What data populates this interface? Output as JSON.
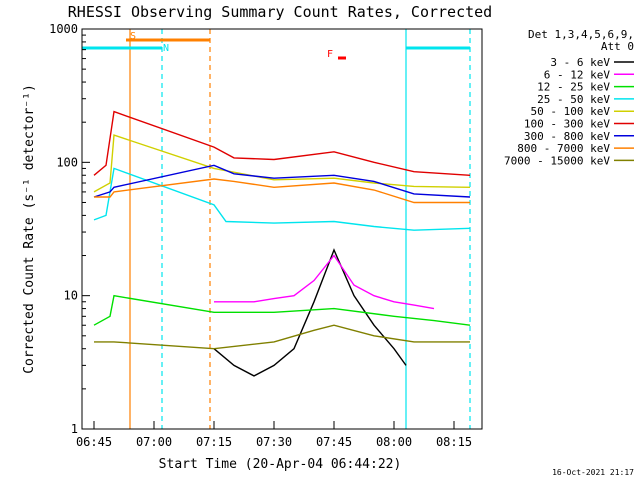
{
  "chart_data": {
    "type": "line",
    "title": "RHESSI Observing Summary Count Rates, Corrected",
    "xlabel": "Start Time (20-Apr-04 06:44:22)",
    "ylabel": "Corrected Count Rate (s⁻¹ detector⁻¹)",
    "yscale": "log",
    "ylim": [
      1,
      1000
    ],
    "xlim": [
      "06:42",
      "08:22"
    ],
    "x_ticks": [
      "06:45",
      "07:00",
      "07:15",
      "07:30",
      "07:45",
      "08:00",
      "08:15"
    ],
    "y_ticks": [
      "1",
      "10",
      "100",
      "1000"
    ],
    "grid": false,
    "legend_position": "top-right",
    "legend_header": [
      "Det 1,3,4,5,6,9,",
      "Att 0"
    ],
    "footer_date": "16-Oct-2021 21:17",
    "markers": {
      "vertical_lines": [
        {
          "x": "06:54",
          "color": "#ff8000",
          "style": "solid"
        },
        {
          "x": "07:02",
          "color": "#00e5ee",
          "style": "dashed"
        },
        {
          "x": "07:14",
          "color": "#ff8000",
          "style": "dashed"
        },
        {
          "x": "08:03",
          "color": "#00e5ee",
          "style": "solid"
        },
        {
          "x": "08:19",
          "color": "#00e5ee",
          "style": "dashed"
        }
      ],
      "flags": [
        {
          "label": "S",
          "color": "#ff8000",
          "start": "06:53",
          "end": "07:14"
        },
        {
          "label": "N",
          "color": "#00e5ee",
          "start": "06:42",
          "end": "07:02"
        },
        {
          "label": "N",
          "color": "#00e5ee",
          "start": "08:03",
          "end": "08:19"
        },
        {
          "label": "F",
          "color": "#ff0000",
          "start": "07:46",
          "end": "07:48"
        }
      ]
    },
    "series": [
      {
        "name": "3 - 6 keV",
        "color": "#000000",
        "points": [
          [
            "07:15",
            4
          ],
          [
            "07:20",
            3
          ],
          [
            "07:25",
            2.5
          ],
          [
            "07:30",
            3
          ],
          [
            "07:35",
            4
          ],
          [
            "07:40",
            9
          ],
          [
            "07:45",
            22
          ],
          [
            "07:50",
            10
          ],
          [
            "07:55",
            6
          ],
          [
            "08:00",
            4
          ],
          [
            "08:03",
            3
          ]
        ]
      },
      {
        "name": "6 - 12 keV",
        "color": "#ff00ff",
        "points": [
          [
            "07:15",
            9
          ],
          [
            "07:20",
            9
          ],
          [
            "07:25",
            9
          ],
          [
            "07:30",
            9.5
          ],
          [
            "07:35",
            10
          ],
          [
            "07:40",
            13
          ],
          [
            "07:45",
            20
          ],
          [
            "07:50",
            12
          ],
          [
            "07:55",
            10
          ],
          [
            "08:00",
            9
          ],
          [
            "08:05",
            8.5
          ],
          [
            "08:10",
            8
          ]
        ]
      },
      {
        "name": "12 - 25 keV",
        "color": "#00e000",
        "points": [
          [
            "06:45",
            6
          ],
          [
            "06:49",
            7
          ],
          [
            "06:50",
            10
          ],
          [
            "07:15",
            7.5
          ],
          [
            "07:30",
            7.5
          ],
          [
            "07:45",
            8
          ],
          [
            "08:00",
            7
          ],
          [
            "08:10",
            6.5
          ],
          [
            "08:19",
            6
          ]
        ]
      },
      {
        "name": "25 - 50 keV",
        "color": "#00e5ee",
        "points": [
          [
            "06:45",
            37
          ],
          [
            "06:48",
            40
          ],
          [
            "06:50",
            90
          ],
          [
            "07:15",
            48
          ],
          [
            "07:18",
            36
          ],
          [
            "07:30",
            35
          ],
          [
            "07:45",
            36
          ],
          [
            "07:55",
            33
          ],
          [
            "08:05",
            31
          ],
          [
            "08:19",
            32
          ]
        ]
      },
      {
        "name": "50 - 100 keV",
        "color": "#d0d000",
        "points": [
          [
            "06:45",
            60
          ],
          [
            "06:49",
            70
          ],
          [
            "06:50",
            160
          ],
          [
            "07:15",
            90
          ],
          [
            "07:30",
            74
          ],
          [
            "07:45",
            76
          ],
          [
            "07:55",
            70
          ],
          [
            "08:05",
            66
          ],
          [
            "08:19",
            65
          ]
        ]
      },
      {
        "name": "100 - 300 keV",
        "color": "#e00000",
        "points": [
          [
            "06:45",
            80
          ],
          [
            "06:48",
            95
          ],
          [
            "06:50",
            240
          ],
          [
            "07:15",
            130
          ],
          [
            "07:20",
            108
          ],
          [
            "07:30",
            105
          ],
          [
            "07:45",
            120
          ],
          [
            "07:55",
            100
          ],
          [
            "08:05",
            85
          ],
          [
            "08:19",
            80
          ]
        ]
      },
      {
        "name": "300 - 800 keV",
        "color": "#0000dd",
        "points": [
          [
            "06:45",
            55
          ],
          [
            "06:49",
            60
          ],
          [
            "06:50",
            65
          ],
          [
            "07:15",
            95
          ],
          [
            "07:20",
            82
          ],
          [
            "07:30",
            76
          ],
          [
            "07:45",
            80
          ],
          [
            "07:55",
            72
          ],
          [
            "08:05",
            58
          ],
          [
            "08:19",
            55
          ]
        ]
      },
      {
        "name": "800 - 7000 keV",
        "color": "#ff8000",
        "points": [
          [
            "06:45",
            55
          ],
          [
            "06:49",
            55
          ],
          [
            "06:50",
            60
          ],
          [
            "07:15",
            75
          ],
          [
            "07:20",
            72
          ],
          [
            "07:30",
            65
          ],
          [
            "07:45",
            70
          ],
          [
            "07:55",
            62
          ],
          [
            "08:05",
            50
          ],
          [
            "08:19",
            50
          ]
        ]
      },
      {
        "name": "7000 - 15000 keV",
        "color": "#808000",
        "points": [
          [
            "06:45",
            4.5
          ],
          [
            "06:50",
            4.5
          ],
          [
            "07:15",
            4
          ],
          [
            "07:30",
            4.5
          ],
          [
            "07:40",
            5.5
          ],
          [
            "07:45",
            6
          ],
          [
            "07:55",
            5
          ],
          [
            "08:05",
            4.5
          ],
          [
            "08:19",
            4.5
          ]
        ]
      }
    ]
  }
}
